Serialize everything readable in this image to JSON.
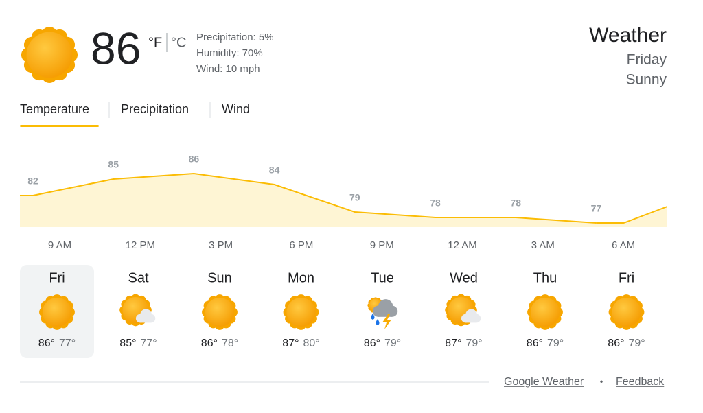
{
  "current": {
    "temperature": "86",
    "unit_f": "°F",
    "unit_c": "°C",
    "precipitation": "Precipitation: 5%",
    "humidity": "Humidity: 70%",
    "wind": "Wind: 10 mph",
    "icon": "sunny"
  },
  "header": {
    "title": "Weather",
    "day": "Friday",
    "condition": "Sunny"
  },
  "tabs": [
    "Temperature",
    "Precipitation",
    "Wind"
  ],
  "chart_data": {
    "type": "line",
    "x": [
      "9 AM",
      "12 PM",
      "3 PM",
      "6 PM",
      "9 PM",
      "12 AM",
      "3 AM",
      "6 AM"
    ],
    "values": [
      82,
      85,
      86,
      84,
      79,
      78,
      78,
      77
    ],
    "color": "#fbbc04",
    "fill": "#fef5d4"
  },
  "forecast": [
    {
      "day": "Fri",
      "high": "86°",
      "low": "77°",
      "icon": "sunny"
    },
    {
      "day": "Sat",
      "high": "85°",
      "low": "77°",
      "icon": "partly-cloudy"
    },
    {
      "day": "Sun",
      "high": "86°",
      "low": "78°",
      "icon": "sunny"
    },
    {
      "day": "Mon",
      "high": "87°",
      "low": "80°",
      "icon": "sunny"
    },
    {
      "day": "Tue",
      "high": "86°",
      "low": "79°",
      "icon": "storm"
    },
    {
      "day": "Wed",
      "high": "87°",
      "low": "79°",
      "icon": "partly-cloudy"
    },
    {
      "day": "Thu",
      "high": "86°",
      "low": "79°",
      "icon": "sunny"
    },
    {
      "day": "Fri",
      "high": "86°",
      "low": "79°",
      "icon": "sunny"
    }
  ],
  "footer": {
    "source": "Google Weather",
    "separator": "•",
    "feedback": "Feedback"
  }
}
